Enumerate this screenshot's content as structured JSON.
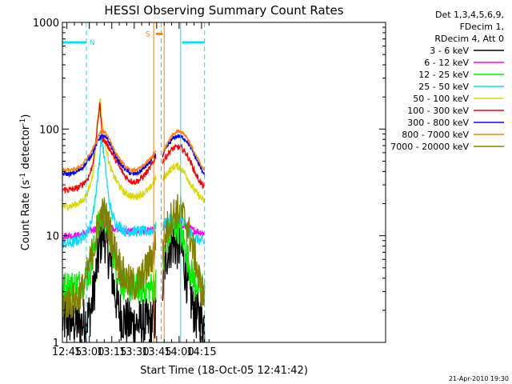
{
  "chart_data": {
    "type": "line",
    "title": "HESSI Observing Summary Count Rates",
    "xlabel": "Start Time (18-Oct-05 12:41:42)",
    "ylabel_parts": [
      "Count Rate (s",
      "-1",
      " detector",
      "-1",
      ")"
    ],
    "yscale": "log",
    "xlim_minutes": [
      42,
      258
    ],
    "ylim": [
      1,
      1000
    ],
    "x_ticks": [
      {
        "min": 45,
        "label": "12:45"
      },
      {
        "min": 60,
        "label": "13:00"
      },
      {
        "min": 75,
        "label": "13:15"
      },
      {
        "min": 90,
        "label": "13:30"
      },
      {
        "min": 105,
        "label": "13:45"
      },
      {
        "min": 120,
        "label": "14:00"
      },
      {
        "min": 135,
        "label": "14:15"
      }
    ],
    "y_ticks": [
      {
        "value": 1,
        "label": "1"
      },
      {
        "value": 10,
        "label": "10"
      },
      {
        "value": 100,
        "label": "100"
      },
      {
        "value": 1000,
        "label": "1000"
      }
    ],
    "legend_header": [
      "Det 1,3,4,5,6,9,",
      "FDecim 1,",
      "RDecim 4, Att 0"
    ],
    "series": [
      {
        "name": "3 - 6 keV",
        "color": "#000000",
        "x": [
          42,
          48,
          52,
          55,
          57,
          59,
          61,
          63,
          65,
          67,
          69,
          71,
          73,
          75,
          77,
          79,
          81,
          84,
          87,
          90,
          93,
          96,
          100,
          103,
          104.5,
          108,
          110,
          113,
          116,
          119,
          122,
          125,
          128,
          131,
          134,
          137
        ],
        "y": [
          1.6,
          1.6,
          1.5,
          1.5,
          1.6,
          1.7,
          2.0,
          3.0,
          5.0,
          8.0,
          11,
          9,
          6.5,
          4.5,
          3.0,
          2.2,
          1.8,
          1.6,
          1.5,
          1.5,
          1.5,
          1.5,
          1.5,
          1.6,
          1.7,
          2.0,
          5.0,
          8.0,
          8.5,
          8.0,
          7.0,
          4.0,
          2.5,
          1.8,
          1.7,
          1.5
        ]
      },
      {
        "name": "6 - 12 keV",
        "color": "#ff00ff",
        "x": [
          42,
          48,
          52,
          56,
          60,
          63,
          66,
          69,
          72,
          75,
          79,
          84,
          90,
          96,
          100,
          103,
          104.5,
          108,
          112,
          116,
          120,
          124,
          128,
          132,
          137
        ],
        "y": [
          10,
          10,
          10,
          10.5,
          11,
          11.5,
          12,
          13,
          12.5,
          12,
          11.5,
          11,
          11,
          11,
          11,
          11.5,
          12,
          11.5,
          12.5,
          13,
          13,
          12.5,
          11.5,
          11,
          10.5
        ]
      },
      {
        "name": "12 - 25 keV",
        "color": "#00ee00",
        "x": [
          42,
          48,
          52,
          55,
          58,
          61,
          64,
          67,
          69,
          71,
          73,
          75,
          77,
          79,
          81,
          84,
          87,
          90,
          93,
          96,
          100,
          103,
          104.5,
          108,
          110,
          113,
          116,
          119,
          122,
          125,
          128,
          131,
          134,
          137
        ],
        "y": [
          3.3,
          3.4,
          3.5,
          3.6,
          4.0,
          5.0,
          9.0,
          14,
          16,
          14,
          11,
          8,
          6,
          4.5,
          3.8,
          3.5,
          3.3,
          3.2,
          3.2,
          3.2,
          3.2,
          3.4,
          3.6,
          4.0,
          6.5,
          10,
          12,
          12,
          10,
          7.0,
          4.5,
          3.6,
          3.4,
          3.3
        ]
      },
      {
        "name": "25 - 50 keV",
        "color": "#00e0ff",
        "x": [
          42,
          48,
          52,
          55,
          57,
          59,
          61,
          63,
          65,
          67,
          68,
          69,
          71,
          73,
          75,
          78,
          81,
          84,
          87,
          90,
          93,
          96,
          100,
          103,
          104.5,
          108,
          110,
          113,
          116,
          119,
          122,
          125,
          128,
          131,
          134,
          137
        ],
        "y": [
          8.5,
          8.5,
          9,
          9.5,
          10.5,
          11,
          13,
          18,
          30,
          55,
          85,
          70,
          40,
          22,
          16,
          13,
          12,
          11,
          11,
          11,
          11,
          11,
          11,
          11.5,
          12,
          11,
          13,
          14,
          15,
          15,
          14,
          12,
          10.5,
          9.5,
          9,
          8.5
        ]
      },
      {
        "name": "50 - 100 keV",
        "color": "#d8d800",
        "x": [
          42,
          48,
          52,
          55,
          58,
          60,
          62,
          64,
          66,
          67,
          68,
          69,
          71,
          73,
          75,
          78,
          81,
          84,
          87,
          90,
          93,
          96,
          100,
          103,
          104.5,
          108,
          110,
          113,
          116,
          119,
          122,
          125,
          128,
          131,
          134,
          137
        ],
        "y": [
          19,
          19,
          20,
          21,
          24,
          28,
          36,
          60,
          140,
          200,
          150,
          100,
          70,
          50,
          40,
          33,
          28,
          25,
          24,
          23,
          24,
          25,
          27,
          32,
          35,
          30,
          35,
          40,
          44,
          45,
          42,
          36,
          30,
          26,
          23,
          21
        ]
      },
      {
        "name": "100 - 300 keV",
        "color": "#ff0000",
        "x": [
          42,
          48,
          52,
          55,
          58,
          60,
          62,
          64,
          66,
          67,
          68,
          69,
          71,
          73,
          75,
          78,
          81,
          84,
          87,
          90,
          93,
          96,
          100,
          103,
          104.5,
          108,
          110,
          113,
          116,
          119,
          122,
          125,
          128,
          131,
          134,
          137
        ],
        "y": [
          27,
          27,
          28,
          30,
          33,
          37,
          45,
          70,
          130,
          175,
          110,
          80,
          75,
          68,
          60,
          50,
          42,
          36,
          33,
          32,
          33,
          36,
          42,
          50,
          55,
          48,
          52,
          60,
          66,
          68,
          66,
          58,
          48,
          38,
          32,
          28
        ]
      },
      {
        "name": "300 - 800 keV",
        "color": "#0000ff",
        "x": [
          42,
          48,
          52,
          55,
          58,
          61,
          64,
          66,
          68,
          70,
          72,
          74,
          76,
          79,
          82,
          85,
          88,
          91,
          94,
          97,
          100,
          103,
          104.5,
          108,
          110,
          113,
          116,
          119,
          122,
          125,
          128,
          131,
          134,
          137
        ],
        "y": [
          38,
          38,
          40,
          43,
          48,
          56,
          68,
          80,
          86,
          85,
          80,
          72,
          62,
          52,
          45,
          41,
          38,
          38,
          40,
          44,
          48,
          55,
          58,
          52,
          60,
          72,
          82,
          86,
          84,
          78,
          66,
          54,
          44,
          38
        ]
      },
      {
        "name": "800 - 7000 keV",
        "color": "#ff8000",
        "x": [
          42,
          48,
          52,
          55,
          58,
          61,
          64,
          66,
          68,
          70,
          72,
          74,
          76,
          79,
          82,
          85,
          88,
          91,
          94,
          97,
          100,
          103,
          104.5,
          108,
          110,
          113,
          116,
          119,
          122,
          125,
          128,
          131,
          134,
          137
        ],
        "y": [
          41,
          41,
          43,
          46,
          52,
          60,
          72,
          86,
          96,
          95,
          88,
          78,
          66,
          55,
          48,
          43,
          41,
          41,
          43,
          47,
          51,
          58,
          62,
          55,
          64,
          78,
          90,
          96,
          94,
          85,
          70,
          57,
          47,
          41
        ]
      },
      {
        "name": "7000 - 20000 keV",
        "color": "#808000",
        "x": [
          42,
          48,
          52,
          55,
          58,
          61,
          64,
          66,
          68,
          70,
          72,
          74,
          76,
          79,
          82,
          85,
          88,
          91,
          94,
          97,
          100,
          103,
          104.5,
          108,
          110,
          113,
          116,
          119,
          122,
          125,
          128,
          131,
          134,
          137
        ],
        "y": [
          2.4,
          2.4,
          2.6,
          3.0,
          4.0,
          6.0,
          9.0,
          13,
          16,
          16,
          14,
          11,
          8,
          6,
          4.5,
          3.8,
          3.5,
          3.5,
          3.8,
          4.5,
          5.5,
          7.0,
          9.0,
          6.0,
          9.0,
          13,
          16,
          17,
          16,
          13,
          9,
          6,
          3.5,
          2.5
        ]
      }
    ],
    "vertical_markers": [
      {
        "min": 42,
        "style": "solid",
        "color": "#00e0ff"
      },
      {
        "min": 58,
        "style": "dashed",
        "color": "#00e0ff"
      },
      {
        "min": 103,
        "style": "solid",
        "color": "#ff8000"
      },
      {
        "min": 108,
        "style": "dashed",
        "color": "#ff8000"
      },
      {
        "min": 110,
        "style": "solid",
        "color": "#ff8000"
      },
      {
        "min": 121,
        "style": "solid",
        "color": "#00e0ff"
      },
      {
        "min": 137,
        "style": "dashed",
        "color": "#00e0ff"
      }
    ],
    "flags": [
      {
        "label": "N",
        "color": "#00e0ff",
        "from_min": 42,
        "to_min": 58,
        "value": 650
      },
      {
        "label": "S",
        "color": "#ff8000",
        "from_min": 104.5,
        "to_min": 109,
        "value": 780
      },
      {
        "label": "",
        "color": "#00e0ff",
        "from_min": 122,
        "to_min": 137,
        "value": 650
      }
    ],
    "data_gap_minutes": [
      104.5,
      109
    ]
  },
  "footer": {
    "timestamp": "21-Apr-2010 19:30"
  }
}
